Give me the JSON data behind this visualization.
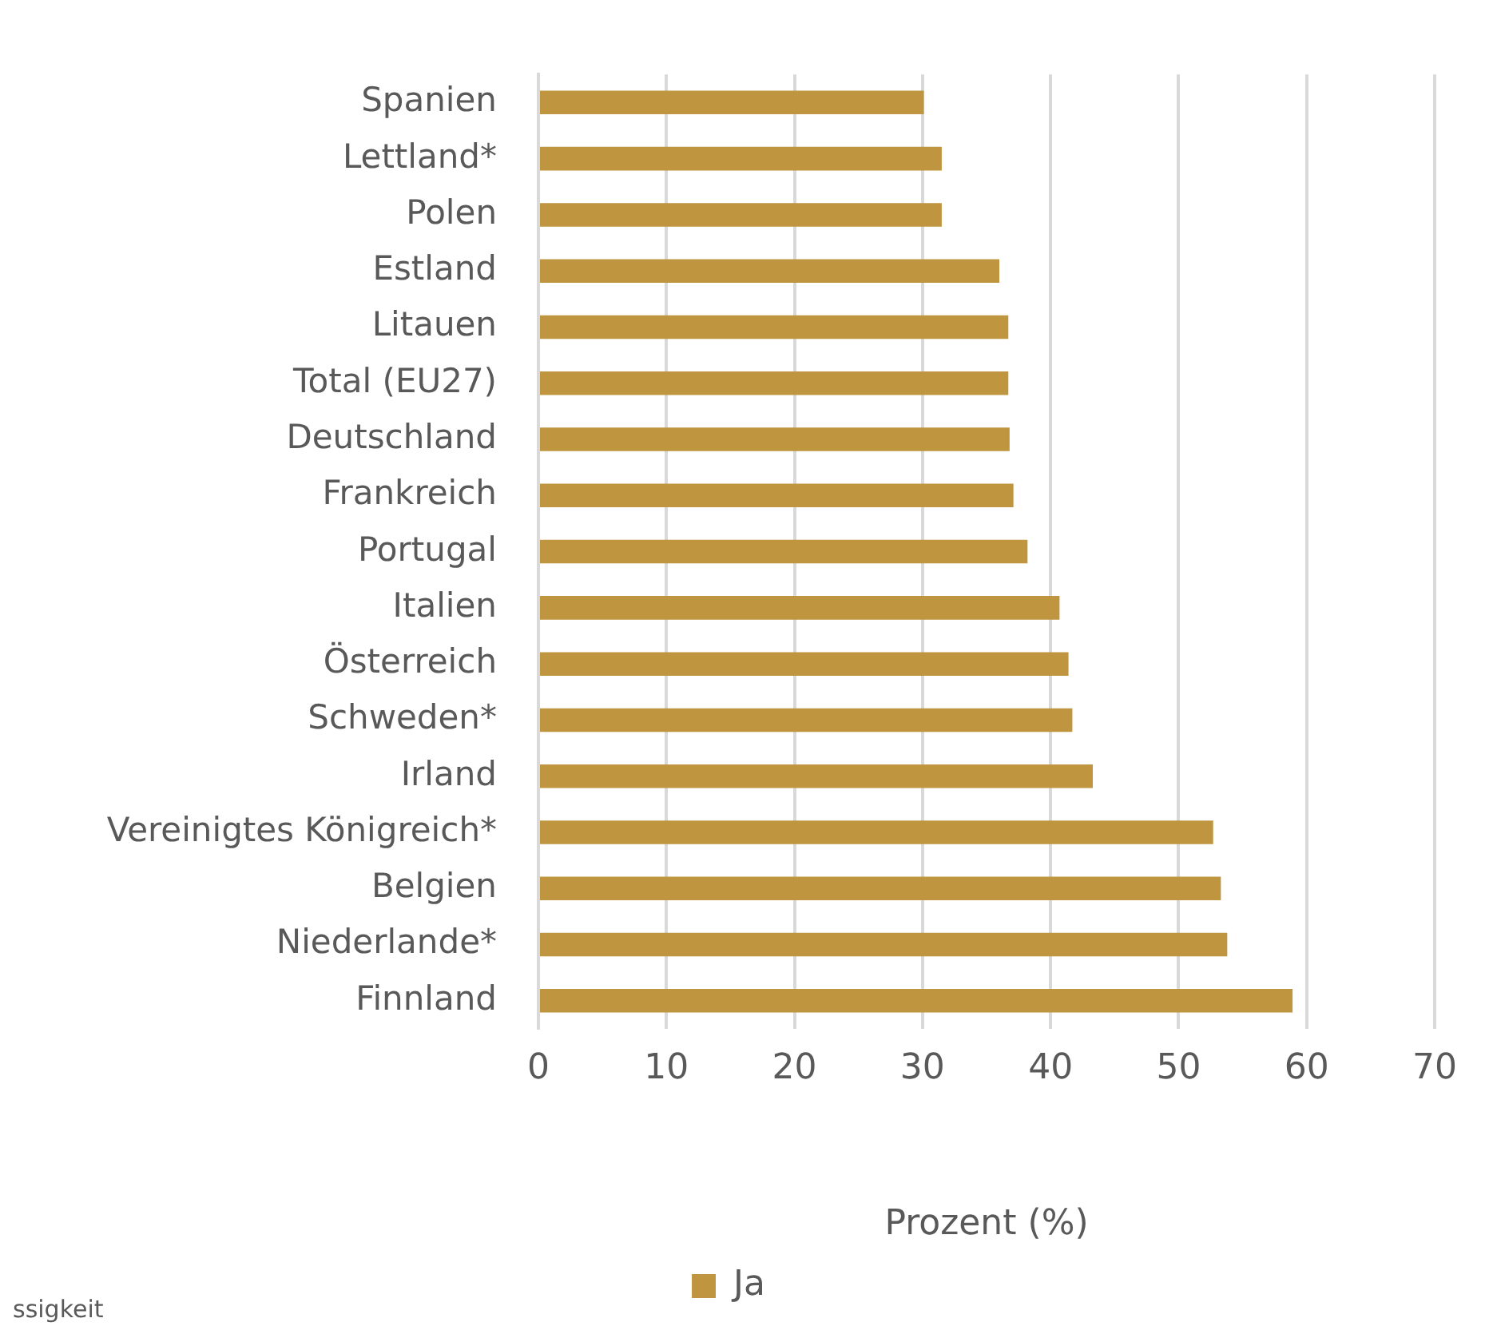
{
  "chart_data": {
    "type": "bar",
    "orientation": "horizontal",
    "categories": [
      "Spanien",
      "Lettland*",
      "Polen",
      "Estland",
      "Litauen",
      "Total (EU27)",
      "Deutschland",
      "Frankreich",
      "Portugal",
      "Italien",
      "Österreich",
      "Schweden*",
      "Irland",
      "Vereinigtes Königreich*",
      "Belgien",
      "Niederlande*",
      "Finnland"
    ],
    "series": [
      {
        "name": "Ja",
        "color": "#bf953f",
        "values": [
          30.1,
          31.5,
          31.5,
          36.0,
          36.7,
          36.7,
          36.8,
          37.1,
          38.2,
          40.7,
          41.4,
          41.7,
          43.3,
          52.7,
          53.3,
          53.8,
          58.9
        ]
      }
    ],
    "xlabel": "Prozent (%)",
    "xlim": [
      0,
      70
    ],
    "xticks": [
      0,
      10,
      20,
      30,
      40,
      50,
      60,
      70
    ],
    "grid": "x",
    "legend": "bottom",
    "annotations": [
      "ssigkeit"
    ]
  }
}
